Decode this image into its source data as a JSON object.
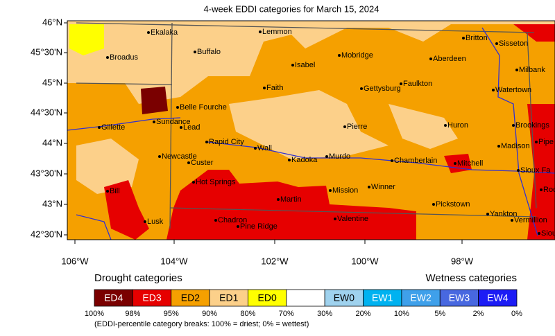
{
  "title": "4-week EDDI categories for March 15, 2024",
  "lat_labels": [
    "46°N",
    "45°30'N",
    "45°N",
    "44°30'N",
    "44°N",
    "43°30'N",
    "43°N",
    "42°30'N"
  ],
  "lon_labels": [
    "106°W",
    "104°W",
    "102°W",
    "100°W",
    "98°W"
  ],
  "cities": [
    "Ekalaka",
    "Lemmon",
    "Britton",
    "Sisseton",
    "Broadus",
    "Buffalo",
    "Mobridge",
    "Aberdeen",
    "Isabel",
    "Milbank",
    "Faulkton",
    "Faith",
    "Gettysburg",
    "Watertown",
    "Belle Fourche",
    "Sundance",
    "Gillette",
    "Lead",
    "Pierre",
    "Huron",
    "Brookings",
    "Rapid City",
    "Wall",
    "Madison",
    "Pipe",
    "Newcastle",
    "Custer",
    "Kadoka",
    "Murdo",
    "Chamberlain",
    "Mitchell",
    "Sioux Fa",
    "Hot Springs",
    "Bill",
    "Winner",
    "Mission",
    "Roc",
    "Martin",
    "Pine Ridge",
    "Pickstown",
    "Lusk",
    "Chadron",
    "Valentine",
    "Yankton",
    "Vermillion",
    "Siou"
  ],
  "legend": {
    "drought_title": "Drought categories",
    "wetness_title": "Wetness categories",
    "categories": [
      {
        "label": "ED4",
        "color": "#7a0000"
      },
      {
        "label": "ED3",
        "color": "#e60000"
      },
      {
        "label": "ED2",
        "color": "#f5a000"
      },
      {
        "label": "ED1",
        "color": "#fcd08a"
      },
      {
        "label": "ED0",
        "color": "#ffff00"
      },
      {
        "label": null,
        "color": "#ffffff"
      },
      {
        "label": "EW0",
        "color": "#9fd2ee"
      },
      {
        "label": "EW1",
        "color": "#00b2f0"
      },
      {
        "label": "EW2",
        "color": "#3fa0ea"
      },
      {
        "label": "EW3",
        "color": "#4868e0"
      },
      {
        "label": "EW4",
        "color": "#1c1cf5"
      }
    ],
    "breaks": [
      "100%",
      "98%",
      "95%",
      "90%",
      "80%",
      "70%",
      "30%",
      "20%",
      "10%",
      "5%",
      "2%",
      "0%"
    ],
    "note": "(EDDI-percentile category breaks: 100% = driest; 0% = wettest)"
  }
}
